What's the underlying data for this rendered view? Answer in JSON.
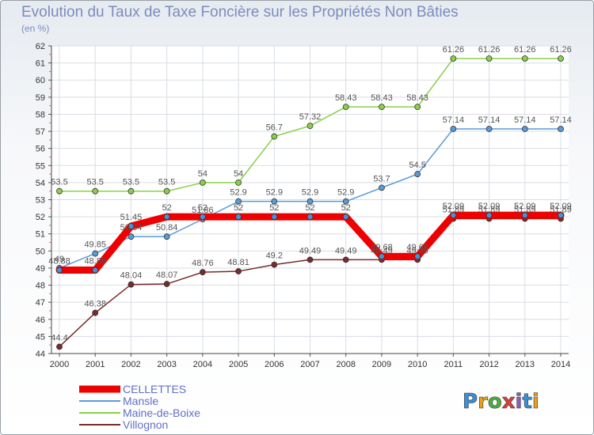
{
  "header": {
    "title": "Evolution du Taux de Taxe Foncière sur les Propriétés Non Bâties",
    "subtitle": "(en %)"
  },
  "brand": {
    "logo_text": "Proxiti",
    "letter_colors": [
      "#3a8ed6",
      "#e8a020",
      "#4caf3c",
      "#d94040",
      "#8a5cc0",
      "#3a8ed6",
      "#e8a020"
    ]
  },
  "chart_data": {
    "type": "line",
    "title": "Evolution du Taux de Taxe Foncière sur les Propriétés Non Bâties",
    "ylabel": "(en %)",
    "xlabel": "",
    "ylim": [
      44,
      62
    ],
    "yticks": [
      44,
      45,
      46,
      47,
      48,
      49,
      50,
      51,
      52,
      53,
      54,
      55,
      56,
      57,
      58,
      59,
      60,
      61,
      62
    ],
    "x": [
      "2000",
      "2001",
      "2002",
      "2003",
      "2004",
      "2005",
      "2006",
      "2007",
      "2008",
      "2009",
      "2010",
      "2011",
      "2012",
      "2013",
      "2014"
    ],
    "grid": true,
    "legend": "bottom-left",
    "series": [
      {
        "name": "Villognon",
        "color": "#7a2a2a",
        "values": [
          44.4,
          46.38,
          48.04,
          48.07,
          48.76,
          48.81,
          49.2,
          49.49,
          49.49,
          49.49,
          49.49,
          51.89,
          51.89,
          51.89,
          51.89
        ],
        "labels": [
          "44.4",
          "46.38",
          "48.04",
          "48.07",
          "48.76",
          "48.81",
          "49.2",
          "49.49",
          "49.49",
          "49.49",
          "49.49",
          "51.89",
          "51.89",
          "51.89",
          "51.89"
        ]
      },
      {
        "name": "Mansle",
        "color": "#5a9ad8",
        "values": [
          49,
          49.85,
          50.84,
          50.84,
          51.86,
          52.9,
          52.9,
          52.9,
          52.9,
          53.7,
          54.5,
          57.14,
          57.14,
          57.14,
          57.14
        ],
        "labels": [
          "49",
          "49.85",
          "50.84",
          "50.84",
          "51.86",
          "52.9",
          "52.9",
          "52.9",
          "52.9",
          "53.7",
          "54.5",
          "57.14",
          "57.14",
          "57.14",
          "57.14"
        ]
      },
      {
        "name": "Maine-de-Boixe",
        "color": "#8ad04a",
        "values": [
          53.5,
          53.5,
          53.5,
          53.5,
          54,
          54,
          56.7,
          57.32,
          58.43,
          58.43,
          58.43,
          61.26,
          61.26,
          61.26,
          61.26
        ],
        "labels": [
          "53.5",
          "53.5",
          "53.5",
          "53.5",
          "54",
          "54",
          "56.7",
          "57.32",
          "58.43",
          "58.43",
          "58.43",
          "61.26",
          "61.26",
          "61.26",
          "61.26"
        ]
      },
      {
        "name": "CELLETTES",
        "color": "#ee0000",
        "highlight": true,
        "values": [
          48.88,
          48.88,
          51.45,
          52,
          52,
          52,
          52,
          52,
          52,
          49.68,
          49.68,
          52.09,
          52.09,
          52.09,
          52.09
        ],
        "labels": [
          "48.88",
          "48.88",
          "51.45",
          "52",
          "52",
          "52",
          "52",
          "52",
          "52",
          "49.68",
          "49.68",
          "52.09",
          "52.09",
          "52.09",
          "52.09"
        ]
      }
    ],
    "legend_entries": [
      "CELLETTES",
      "Mansle",
      "Maine-de-Boixe",
      "Villognon"
    ]
  }
}
